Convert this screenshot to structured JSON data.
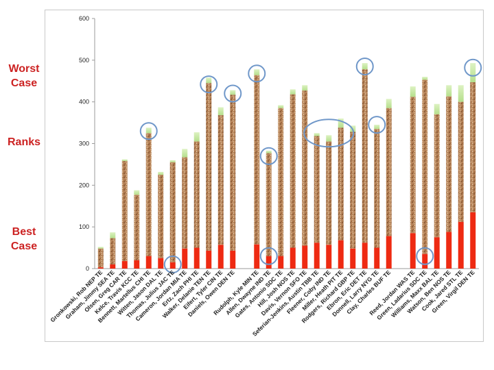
{
  "side_labels": {
    "worst_case": "Worst Case",
    "ranks": "Ranks",
    "best_case": "Best Case"
  },
  "colors": {
    "best": "#ee2a12",
    "mid": "#b8865c",
    "worst": "#c6e8a0",
    "circle": "#6f97c9",
    "side_label": "#cc2222"
  },
  "chart_data": {
    "type": "bar",
    "stacked": true,
    "ylim": [
      0,
      600
    ],
    "yticks": [
      0,
      100,
      200,
      300,
      400,
      500,
      600
    ],
    "grid": false,
    "categories": [
      "Gronkowski, Rob NEP TE",
      "Graham, Jimmy SEA TE",
      "Olsen, Greg CAR TE",
      "Kelce, Travis KCC TE",
      "Bennett, Martellus CHI TE",
      "Witten, Jason DAL TE",
      "Thomas, Julius JAC TE",
      "Cameron, Jordan MIA TE",
      "Ertz, Zach PHI TE",
      "Walker, Delanie TEN TE",
      "Eifert, Tyler CIN TE",
      "Daniels, Owen DEN TE",
      "",
      "Rudolph, Kyle MIN TE",
      "Allen, Dwayne IND TE",
      "Gates, Antonio SDC TE",
      "Hill, Josh NOS TE",
      "Davis, Vernon SFO TE",
      "Seferian-Jenkins, Austin TBB TE",
      "Fleener, Coby IND TE",
      "Miller, Heath PIT TE",
      "Rodgers, Richard GBP TE",
      "Ebron, Eric DET TE",
      "Donnell, Larry NYG TE",
      "Clay, Charles BUF TE",
      "",
      "Reed, Jordan WAS TE",
      "Green, Ladarius SDC TE",
      "Williams, Maxx BAL TE",
      "Watson, Ben NOS TE",
      "Cook, Jared STL TE",
      "Green, Virgil DEN TE"
    ],
    "series": [
      {
        "best": [
          3,
          10,
          18,
          20,
          30,
          25,
          15,
          48,
          50,
          43,
          57,
          43,
          null,
          58,
          30,
          30,
          50,
          55,
          62,
          57,
          68,
          48,
          62,
          50,
          78,
          null,
          85,
          35,
          75,
          88,
          112,
          135
        ]
      },
      {
        "mid": [
          48,
          73,
          258,
          177,
          325,
          225,
          255,
          267,
          305,
          445,
          368,
          417,
          null,
          464,
          277,
          385,
          418,
          427,
          318,
          305,
          338,
          328,
          478,
          335,
          385,
          null,
          412,
          453,
          370,
          413,
          400,
          447
        ]
      },
      {
        "worst": [
          52,
          87,
          262,
          188,
          338,
          232,
          260,
          287,
          327,
          458,
          387,
          428,
          null,
          478,
          283,
          392,
          430,
          440,
          325,
          320,
          360,
          343,
          493,
          345,
          407,
          null,
          437,
          460,
          395,
          440,
          440,
          493
        ]
      }
    ],
    "annotations": {
      "circled": [
        {
          "category": "Bennett, Martellus CHI TE",
          "y": 330
        },
        {
          "category": "Thomas, Julius JAC TE",
          "y": 10
        },
        {
          "category": "Walker, Delanie TEN TE",
          "y": 442
        },
        {
          "category": "Daniels, Owen DEN TE",
          "y": 420
        },
        {
          "category": "Rudolph, Kyle MIN TE",
          "y": 468
        },
        {
          "category": "Allen, Dwayne IND TE",
          "y": 270
        },
        {
          "category": "Allen, Dwayne IND TE",
          "y": 30
        },
        {
          "category": "Fleener, Coby IND TE",
          "y": 325
        },
        {
          "category": "Donnell, Larry NYG TE",
          "y": 345
        },
        {
          "category": "Ebron, Eric DET TE",
          "y": 485
        },
        {
          "category": "Green, Ladarius SDC TE",
          "y": 30
        },
        {
          "category": "Green, Virgil DEN TE",
          "y": 482
        }
      ]
    }
  }
}
